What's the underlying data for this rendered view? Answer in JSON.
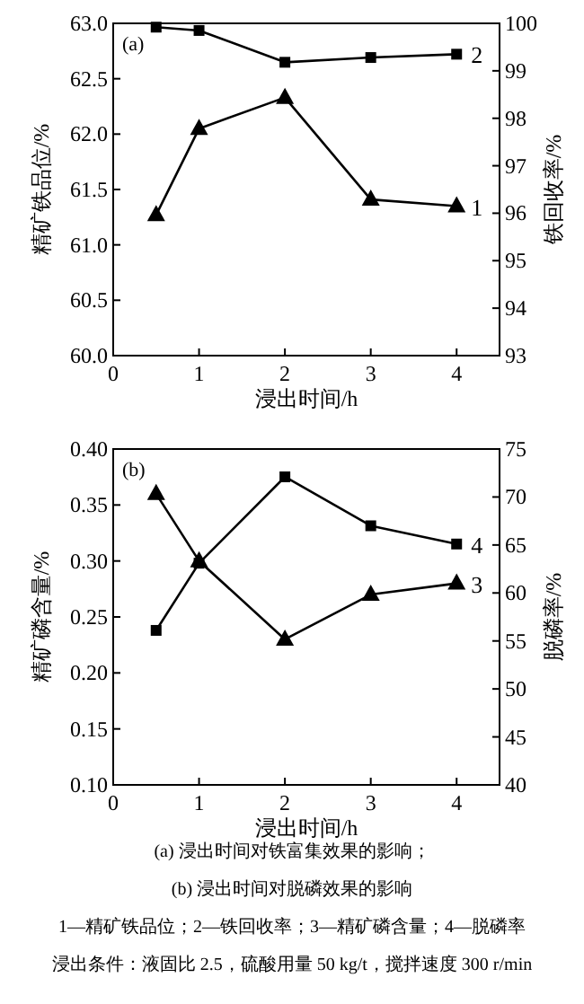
{
  "chart_data": [
    {
      "type": "line",
      "xlabel": "浸出时间/h",
      "ylabel": "精矿铁品位/%",
      "y2label": "铁回收率/%",
      "annotations": [
        "(a)"
      ],
      "x": [
        0.5,
        1,
        2,
        3,
        4
      ],
      "xlim": [
        0,
        4.5
      ],
      "xticks": [
        0,
        1,
        2,
        3,
        4
      ],
      "ylim": [
        60,
        63
      ],
      "yticks": [
        {
          "value": 60,
          "label": "60.0"
        },
        60.5,
        {
          "value": 61,
          "label": "61.0"
        },
        61.5,
        {
          "value": 62,
          "label": "62.0"
        },
        62.5,
        {
          "value": 63,
          "label": "63.0"
        }
      ],
      "y2lim": [
        93,
        100
      ],
      "y2ticks": [
        93,
        94,
        95,
        96,
        97,
        98,
        99,
        100
      ],
      "series": [
        {
          "name": "1",
          "color": "#000000",
          "marker": "triangle",
          "values": [
            61.27,
            62.05,
            62.33,
            61.41,
            61.35
          ]
        },
        {
          "name": "2",
          "color": "#000000",
          "marker": "square",
          "axis": "y2",
          "values": [
            99.92,
            99.85,
            99.18,
            99.28,
            99.35
          ]
        }
      ]
    },
    {
      "type": "line",
      "xlabel": "浸出时间/h",
      "ylabel": "精矿磷含量/%",
      "y2label": "脱磷率/%",
      "annotations": [
        "(b)",
        "(a) 浸出时间对铁富集效果的影响；",
        "(b) 浸出时间对脱磷效果的影响",
        "1—精矿铁品位；2—铁回收率；3—精矿磷含量；4—脱磷率",
        "浸出条件：液固比 2.5，硫酸用量 50 kg/t，搅拌速度 300 r/min"
      ],
      "x": [
        0.5,
        1,
        2,
        3,
        4
      ],
      "xlim": [
        0,
        4.5
      ],
      "xticks": [
        0,
        1,
        2,
        3,
        4
      ],
      "ylim": [
        0.1,
        0.4
      ],
      "yticks": [
        {
          "value": 0.1,
          "label": "0.10"
        },
        0.15,
        {
          "value": 0.2,
          "label": "0.20"
        },
        0.25,
        {
          "value": 0.3,
          "label": "0.30"
        },
        0.35,
        {
          "value": 0.4,
          "label": "0.40"
        }
      ],
      "y2lim": [
        40,
        75
      ],
      "y2ticks": [
        40,
        45,
        50,
        55,
        60,
        65,
        70,
        75
      ],
      "series": [
        {
          "name": "3",
          "color": "#000000",
          "marker": "triangle",
          "values": [
            0.36,
            0.3,
            0.23,
            0.27,
            0.28
          ]
        },
        {
          "name": "4",
          "color": "#000000",
          "marker": "square",
          "axis": "y2",
          "values": [
            56.1,
            63.1,
            72.1,
            67.0,
            65.1
          ]
        }
      ]
    }
  ]
}
